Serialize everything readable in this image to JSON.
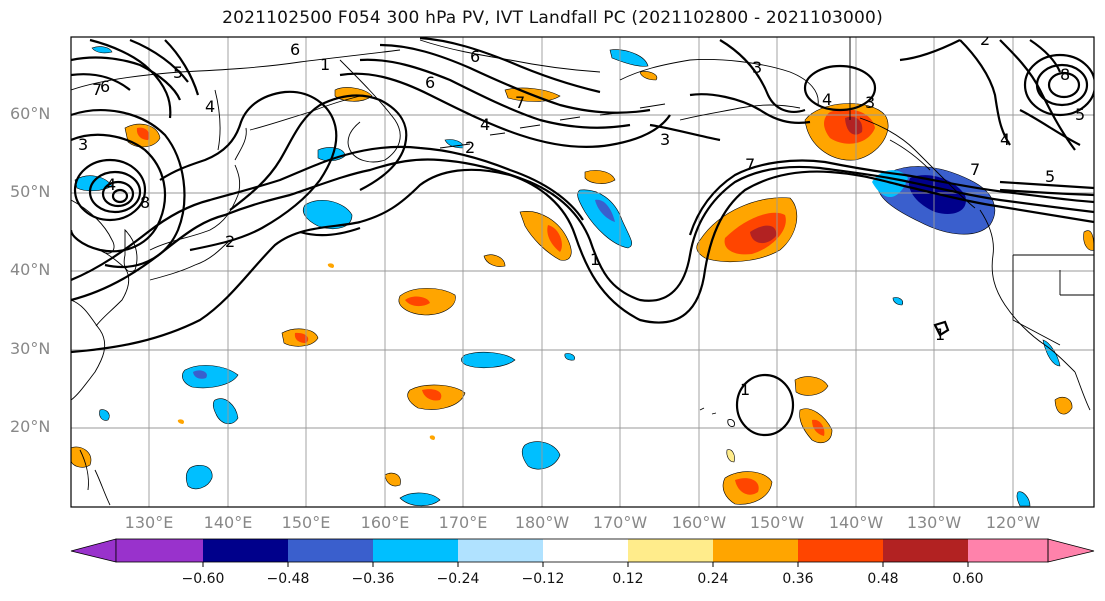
{
  "title": "2021102500 F054 300 hPa PV, IVT Landfall PC (2021102800 - 2021103000)",
  "lat_labels": [
    "60°N",
    "50°N",
    "40°N",
    "30°N",
    "20°N"
  ],
  "lon_labels": [
    "130°E",
    "140°E",
    "150°E",
    "160°E",
    "170°E",
    "180°W",
    "170°W",
    "160°W",
    "150°W",
    "140°W",
    "130°W",
    "120°W"
  ],
  "colorbar": {
    "ticks": [
      "−0.60",
      "−0.48",
      "−0.36",
      "−0.24",
      "−0.12",
      "0.12",
      "0.24",
      "0.36",
      "0.48",
      "0.60"
    ],
    "colors": [
      "#9932cc",
      "#00008b",
      "#3a5fcd",
      "#00bfff",
      "#b0e2ff",
      "#ffffff",
      "#ffec8b",
      "#ffa500",
      "#ff4500",
      "#b22222",
      "#ff82ab"
    ]
  },
  "contour_labels": [
    "1",
    "2",
    "3",
    "4",
    "5",
    "6",
    "7",
    "8"
  ]
}
